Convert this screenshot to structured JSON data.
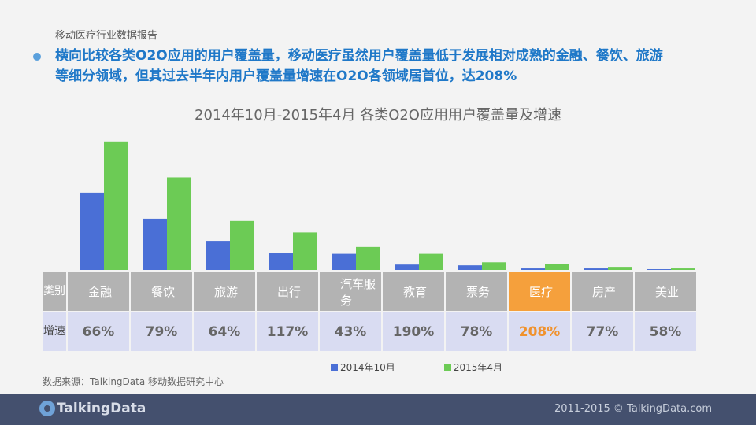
{
  "header": {
    "report_label": "移动医疗行业数据报告",
    "headline_line1": "横向比较各类O2O应用的用户覆盖量，移动医疗虽然用户覆盖量低于发展相对成熟的金融、餐饮、旅游",
    "headline_line2": "等细分领域，但其过去半年内用户覆盖量增速在O2O各领域居首位，达208%"
  },
  "chart_data": {
    "type": "bar",
    "title": "2014年10月-2015年4月 各类O2O应用用户覆盖量及增速",
    "categories": [
      "金融",
      "餐饮",
      "旅游",
      "出行",
      "汽车服务",
      "教育",
      "票务",
      "医疗",
      "房产",
      "美业"
    ],
    "series": [
      {
        "name": "2014年10月",
        "color": "#4a6fd6",
        "values": [
          101,
          67,
          38,
          22,
          21,
          7,
          6,
          2,
          2,
          1
        ]
      },
      {
        "name": "2015年4月",
        "color": "#6ccb55",
        "values": [
          168,
          121,
          64,
          49,
          30,
          21,
          10,
          8,
          4,
          2
        ]
      }
    ],
    "growth_rates": [
      "66%",
      "79%",
      "64%",
      "117%",
      "43%",
      "190%",
      "78%",
      "208%",
      "77%",
      "58%"
    ],
    "highlight_index": 7,
    "highlight_color": "#f5a03c",
    "ylim": [
      0,
      175
    ]
  },
  "table": {
    "category_header": "类别",
    "rate_header": "增速"
  },
  "source": "数据来源：TalkingData 移动数据研究中心",
  "footer": {
    "logo_text": "TalkingData",
    "copyright": "2011-2015 © TalkingData.com"
  }
}
